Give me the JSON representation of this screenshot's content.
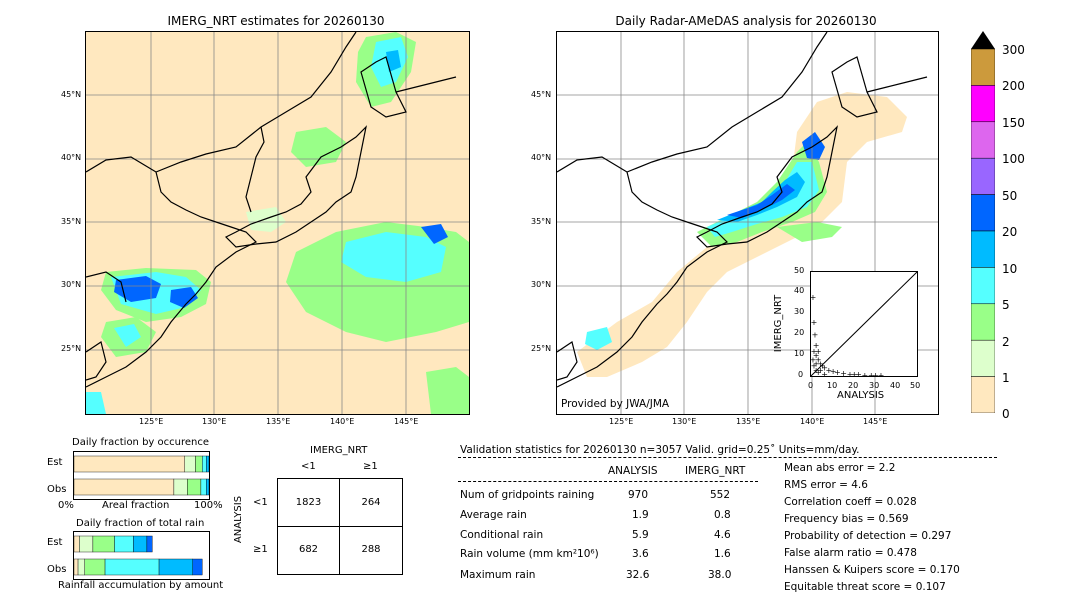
{
  "left_map": {
    "title": "IMERG_NRT estimates for 20260130",
    "lat_labels": [
      "45°N",
      "40°N",
      "35°N",
      "30°N",
      "25°N"
    ],
    "lon_labels": [
      "125°E",
      "130°E",
      "135°E",
      "140°E",
      "145°E"
    ]
  },
  "right_map": {
    "title": "Daily Radar-AMeDAS analysis for 20260130",
    "lat_labels": [
      "45°N",
      "40°N",
      "35°N",
      "30°N",
      "25°N"
    ],
    "lon_labels": [
      "125°E",
      "130°E",
      "135°E",
      "140°E",
      "145°E"
    ],
    "credit": "Provided by JWA/JMA"
  },
  "colorbar": {
    "labels": [
      "300",
      "200",
      "150",
      "100",
      "50",
      "20",
      "10",
      "5",
      "2",
      "1",
      "0"
    ],
    "colors": [
      "#cc9a3c",
      "#ff00ff",
      "#dd66ee",
      "#9966ff",
      "#0066ff",
      "#00bbff",
      "#55ffff",
      "#99ff88",
      "#ddffcc",
      "#ffe8bf"
    ]
  },
  "scatter": {
    "xlabel": "ANALYSIS",
    "ylabel": "IMERG_NRT",
    "ticks": [
      "0",
      "10",
      "20",
      "30",
      "40",
      "50"
    ]
  },
  "fraction_occ": {
    "title": "Daily fraction by occurence",
    "rows": [
      "Est",
      "Obs"
    ],
    "axis_left": "0%",
    "axis_mid": "Areal fraction",
    "axis_right": "100%"
  },
  "fraction_rain": {
    "title": "Daily fraction of total rain",
    "rows": [
      "Est",
      "Obs"
    ],
    "axis_label": "Rainfall accumulation by amount"
  },
  "contingency": {
    "col_title": "IMERG_NRT",
    "col_labels": [
      "<1",
      "≥1"
    ],
    "row_title": "ANALYSIS",
    "row_labels": [
      "<1",
      "≥1"
    ],
    "cells": [
      [
        "1823",
        "264"
      ],
      [
        "682",
        "288"
      ]
    ]
  },
  "validation": {
    "header": "Validation statistics for 20260130  n=3057 Valid. grid=0.25˚ Units=mm/day.",
    "col_analysis": "ANALYSIS",
    "col_imerg": "IMERG_NRT",
    "rows": [
      {
        "label": "Num of gridpoints raining",
        "analysis": "970",
        "imerg": "552"
      },
      {
        "label": "Average rain",
        "analysis": "1.9",
        "imerg": "0.8"
      },
      {
        "label": "Conditional rain",
        "analysis": "5.9",
        "imerg": "4.6"
      },
      {
        "label": "Rain volume (mm km²10⁶)",
        "analysis": "3.6",
        "imerg": "1.6"
      },
      {
        "label": "Maximum rain",
        "analysis": "32.6",
        "imerg": "38.0"
      }
    ],
    "scores": [
      "Mean abs error =    2.2",
      "RMS error =    4.6",
      "Correlation coeff =  0.028",
      "Frequency bias =  0.569",
      "Probability of detection =  0.297",
      "False alarm ratio =  0.478",
      "Hanssen & Kuipers score =  0.170",
      "Equitable threat score =  0.107"
    ]
  },
  "chart_data": [
    {
      "type": "scatter",
      "title": "",
      "xlabel": "ANALYSIS",
      "ylabel": "IMERG_NRT",
      "xlim": [
        0,
        50
      ],
      "ylim": [
        0,
        50
      ],
      "x": [
        0.5,
        1,
        1.5,
        2,
        2,
        3,
        3,
        4,
        5,
        6,
        8,
        10,
        12,
        15,
        18,
        20,
        22,
        25,
        28,
        30,
        32.6,
        1,
        2,
        3,
        0.5,
        1,
        2,
        4,
        6
      ],
      "y": [
        38,
        26,
        20,
        15,
        10,
        12,
        8,
        6,
        5,
        4,
        3,
        2.5,
        2,
        1.5,
        1,
        1,
        1,
        0.5,
        0.5,
        0.5,
        0.5,
        5,
        3,
        2,
        8,
        12,
        6,
        3,
        1
      ]
    },
    {
      "type": "bar",
      "title": "Daily fraction by occurence",
      "categories": [
        "Est",
        "Obs"
      ],
      "series": [
        {
          "values": [
            0.82,
            0.74
          ]
        },
        {
          "values": [
            0.08,
            0.1
          ]
        },
        {
          "values": [
            0.05,
            0.1
          ]
        },
        {
          "values": [
            0.03,
            0.04
          ]
        },
        {
          "values": [
            0.02,
            0.02
          ]
        }
      ]
    },
    {
      "type": "bar",
      "title": "Daily fraction of total rain",
      "categories": [
        "Est",
        "Obs"
      ],
      "series": [
        {
          "values": [
            0.04,
            0.03
          ]
        },
        {
          "values": [
            0.1,
            0.05
          ]
        },
        {
          "values": [
            0.16,
            0.15
          ]
        },
        {
          "values": [
            0.14,
            0.4
          ]
        },
        {
          "values": [
            0.1,
            0.25
          ]
        },
        {
          "values": [
            0.04,
            0.07
          ]
        }
      ]
    }
  ]
}
